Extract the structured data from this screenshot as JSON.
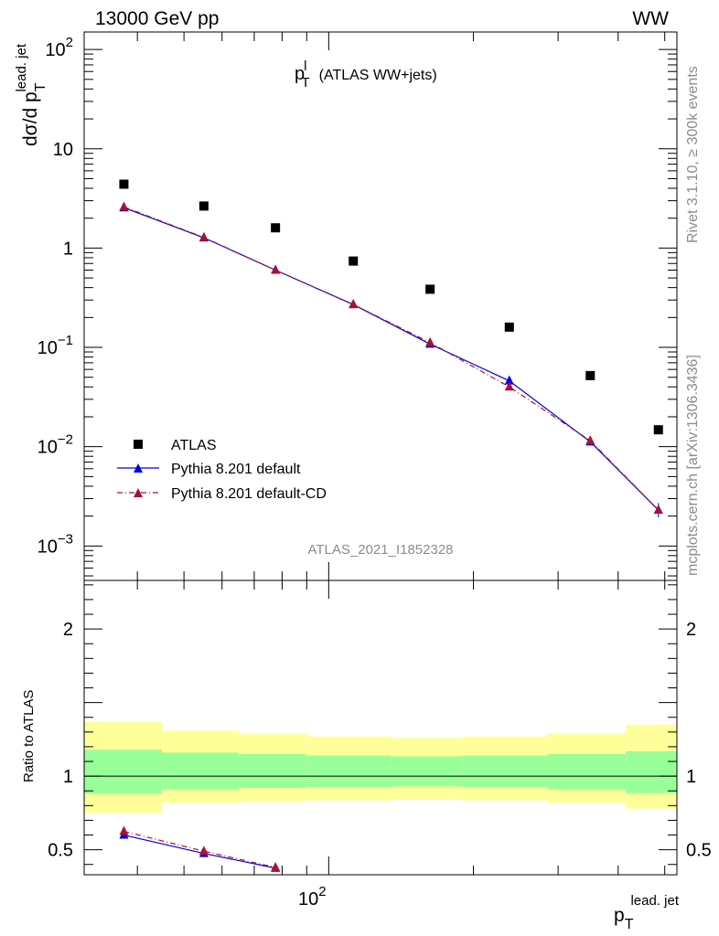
{
  "header": {
    "energy_label": "13000 GeV pp",
    "process_label": "WW"
  },
  "side_labels": {
    "rivet": "Rivet 3.1.10, ≥ 300k events",
    "mcplots": "mcplots.cern.ch [arXiv:1306.3436]"
  },
  "chart_data": [
    {
      "type": "scatter",
      "title_main": "p",
      "title_sup": "l",
      "title_sub": "T",
      "title_rest": "(ATLAS WW+jets)",
      "ylabel": "dσ/d p",
      "ylabel_sub": "T",
      "ylabel_sup": "lead. jet",
      "yscale": "log",
      "xscale": "log",
      "ylim": [
        0.00045,
        150
      ],
      "xlim": [
        31,
        530
      ],
      "grid": false,
      "legend_position": "bottom-left",
      "y_tick_labels": [
        {
          "value": 100,
          "mant": "10",
          "exp": "2"
        },
        {
          "value": 10,
          "mant": "10",
          "exp": ""
        },
        {
          "value": 1,
          "mant": "1",
          "exp": ""
        },
        {
          "value": 0.1,
          "mant": "10",
          "exp": "−1"
        },
        {
          "value": 0.01,
          "mant": "10",
          "exp": "−2"
        },
        {
          "value": 0.001,
          "mant": "10",
          "exp": "−3"
        }
      ],
      "watermark": "ATLAS_2021_I1852328",
      "series": [
        {
          "name": "ATLAS",
          "marker": "square",
          "color": "#000000",
          "x": [
            37.5,
            55,
            77.5,
            112.5,
            162.5,
            237.5,
            350,
            485
          ],
          "y": [
            4.4,
            2.65,
            1.6,
            0.74,
            0.385,
            0.16,
            0.052,
            0.0148
          ],
          "x_edges": [
            30,
            45,
            65,
            90,
            135,
            190,
            285,
            415,
            555
          ]
        },
        {
          "name": "Pythia 8.201 default",
          "marker": "triangle",
          "line": "solid",
          "color": "#0000dd",
          "x": [
            37.5,
            55,
            77.5,
            112.5,
            162.5,
            237.5,
            350,
            485
          ],
          "y": [
            2.55,
            1.27,
            0.6,
            0.27,
            0.108,
            0.046,
            0.0112,
            0.0023
          ]
        },
        {
          "name": "Pythia 8.201 default-CD",
          "marker": "triangle",
          "line": "dash-dot",
          "color": "#aa1133",
          "x": [
            37.5,
            55,
            77.5,
            112.5,
            162.5,
            237.5,
            350,
            485
          ],
          "y": [
            2.6,
            1.28,
            0.6,
            0.27,
            0.112,
            0.04,
            0.0115,
            0.0023
          ]
        }
      ]
    },
    {
      "type": "area",
      "ylabel": "Ratio to ATLAS",
      "xlabel": "p",
      "xlabel_sub": "T",
      "xlabel_sup": "lead. jet",
      "ylim": [
        0.33,
        2.33
      ],
      "xlim": [
        31,
        530
      ],
      "x_tick_label": {
        "value": 100,
        "mant": "10",
        "exp": "2"
      },
      "y_tick_labels": [
        {
          "value": 2,
          "text": "2"
        },
        {
          "value": 1,
          "text": "1"
        },
        {
          "value": 0.5,
          "text": "0.5"
        }
      ],
      "reference_line": 1,
      "bands": {
        "x_edges": [
          30,
          45,
          65,
          90,
          135,
          190,
          285,
          415,
          555
        ],
        "inner_lo": [
          0.88,
          0.91,
          0.92,
          0.925,
          0.93,
          0.925,
          0.91,
          0.885
        ],
        "inner_hi": [
          1.18,
          1.16,
          1.15,
          1.14,
          1.135,
          1.14,
          1.15,
          1.17
        ],
        "outer_lo": [
          0.75,
          0.82,
          0.83,
          0.835,
          0.84,
          0.835,
          0.82,
          0.78
        ],
        "outer_hi": [
          1.37,
          1.31,
          1.29,
          1.27,
          1.26,
          1.27,
          1.29,
          1.35
        ],
        "inner_color": "#99ff99",
        "outer_color": "#ffff99"
      },
      "series": [
        {
          "name": "Pythia 8.201 default",
          "color": "#0000dd",
          "x": [
            37.5,
            55,
            77.5
          ],
          "y": [
            0.6,
            0.475,
            0.375
          ]
        },
        {
          "name": "Pythia 8.201 default-CD",
          "color": "#aa1133",
          "x": [
            37.5,
            55,
            77.5
          ],
          "y": [
            0.625,
            0.49,
            0.38
          ]
        }
      ]
    }
  ]
}
